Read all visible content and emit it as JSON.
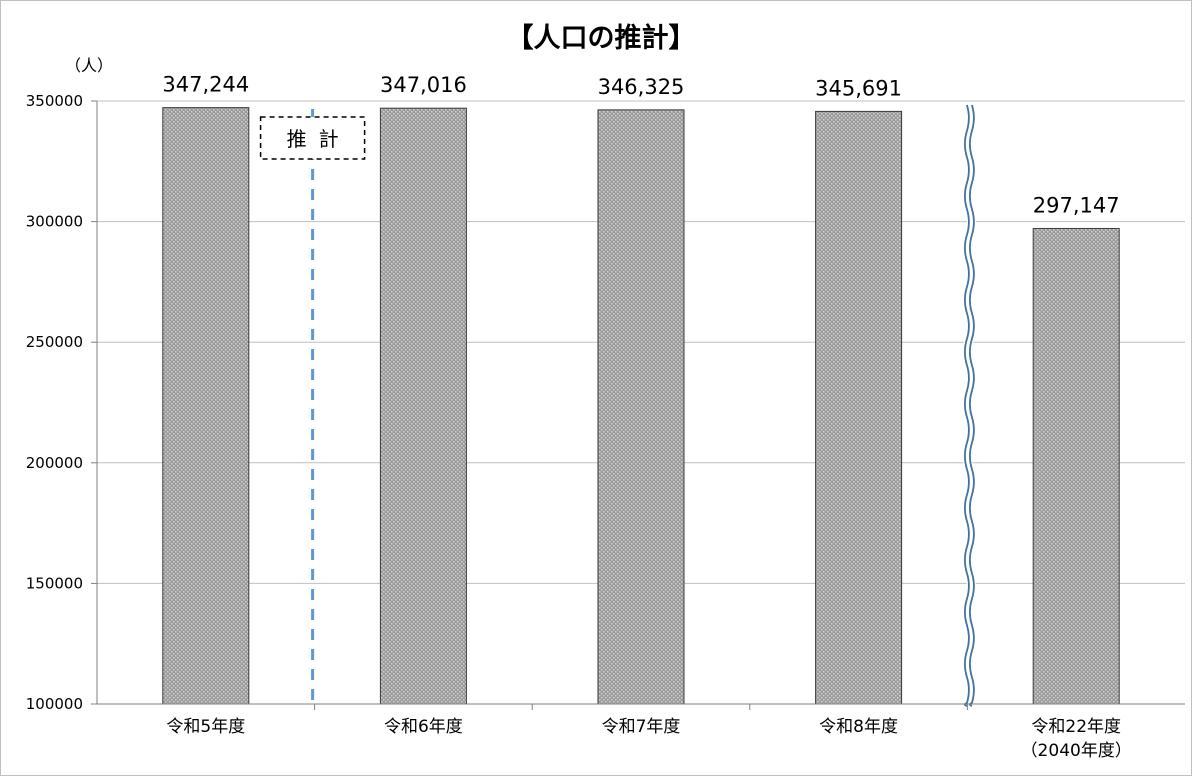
{
  "chart_data": {
    "type": "bar",
    "title": "【人口の推計】",
    "unit_label": "（人）",
    "categories": [
      [
        "令和5年度"
      ],
      [
        "令和6年度"
      ],
      [
        "令和7年度"
      ],
      [
        "令和8年度"
      ],
      [
        "令和22年度",
        "（2040年度）"
      ]
    ],
    "values": [
      347244,
      347016,
      346325,
      345691,
      297147
    ],
    "value_labels": [
      "347,244",
      "347,016",
      "346,325",
      "345,691",
      "297,147"
    ],
    "ylim": [
      100000,
      350000
    ],
    "yticks": [
      100000,
      150000,
      200000,
      250000,
      300000,
      350000
    ],
    "ytick_labels": [
      "100000",
      "150000",
      "200000",
      "250000",
      "300000",
      "350000"
    ],
    "grid": true,
    "legend": "none",
    "bar_color": "#a6a6a6",
    "annotations": {
      "estimate_label": "推計",
      "estimate_divider_after_category": 0,
      "divider_color": "#5b9bd5",
      "axis_break_after_category": 3,
      "axis_break_color": "#41719c"
    }
  }
}
